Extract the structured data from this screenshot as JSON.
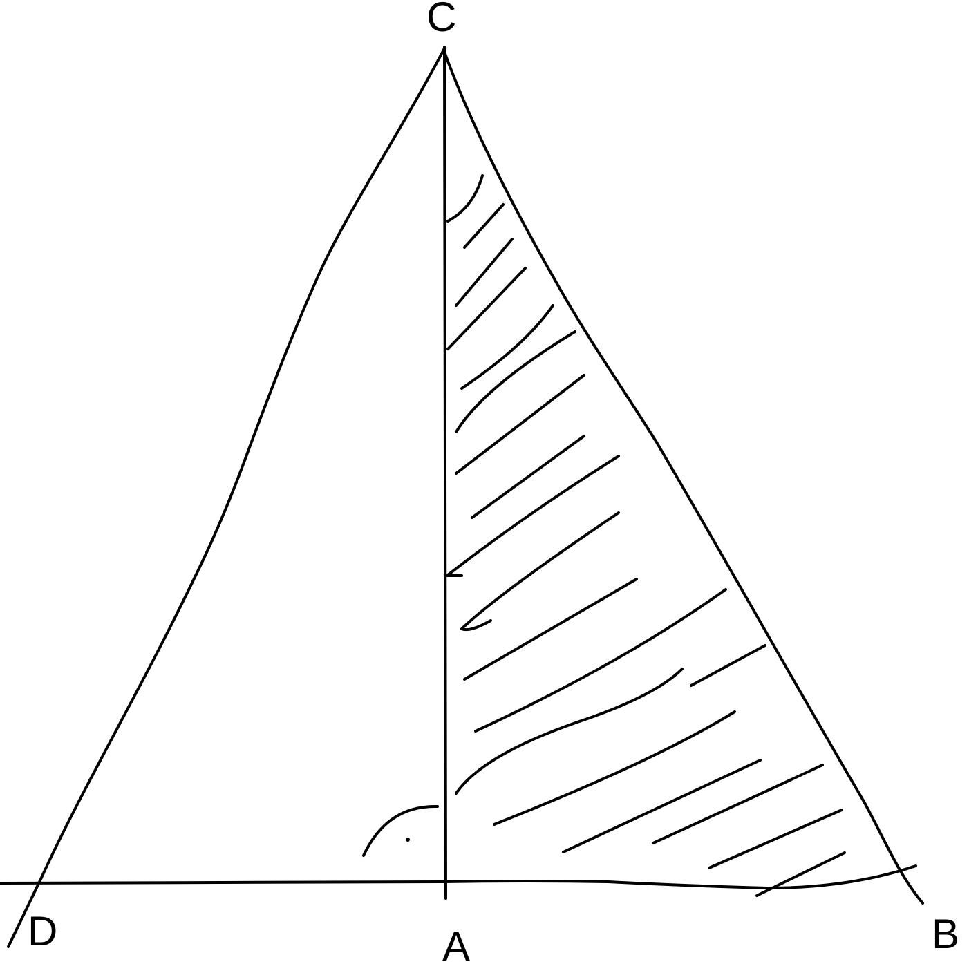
{
  "diagram": {
    "labels": {
      "c": "C",
      "d": "D",
      "a": "A",
      "b": "B"
    },
    "colors": {
      "ink": "#000000",
      "background": "#ffffff"
    },
    "marks": {
      "right_angle_at": "A",
      "shaded_region": "triangle ACB"
    }
  }
}
